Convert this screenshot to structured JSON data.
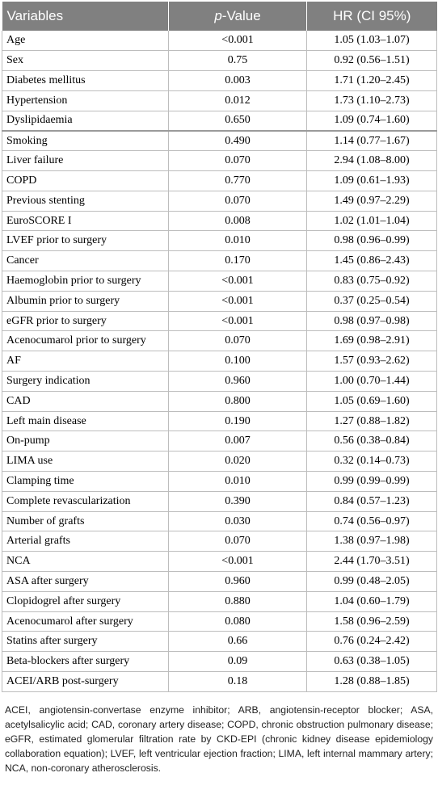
{
  "table": {
    "headers": {
      "variables": "Variables",
      "p_value_prefix": "p",
      "p_value_suffix": "-Value",
      "hr": "HR (CI 95%)"
    },
    "rows": [
      {
        "variable": "Age",
        "p": "<0.001",
        "hr": "1.05 (1.03–1.07)"
      },
      {
        "variable": "Sex",
        "p": "0.75",
        "hr": "0.92 (0.56–1.51)"
      },
      {
        "variable": "Diabetes mellitus",
        "p": "0.003",
        "hr": "1.71 (1.20–2.45)"
      },
      {
        "variable": "Hypertension",
        "p": "0.012",
        "hr": "1.73 (1.10–2.73)"
      },
      {
        "variable": "Dyslipidaemia",
        "p": "0.650",
        "hr": "1.09 (0.74–1.60)"
      },
      {
        "variable": "Smoking",
        "p": "0.490",
        "hr": "1.14 (0.77–1.67)"
      },
      {
        "variable": "Liver failure",
        "p": "0.070",
        "hr": "2.94 (1.08–8.00)"
      },
      {
        "variable": "COPD",
        "p": "0.770",
        "hr": "1.09 (0.61–1.93)"
      },
      {
        "variable": "Previous stenting",
        "p": "0.070",
        "hr": "1.49 (0.97–2.29)"
      },
      {
        "variable": "EuroSCORE I",
        "p": "0.008",
        "hr": "1.02 (1.01–1.04)"
      },
      {
        "variable": "LVEF prior to surgery",
        "p": "0.010",
        "hr": "0.98 (0.96–0.99)"
      },
      {
        "variable": "Cancer",
        "p": "0.170",
        "hr": "1.45 (0.86–2.43)"
      },
      {
        "variable": "Haemoglobin prior to surgery",
        "p": "<0.001",
        "hr": "0.83 (0.75–0.92)"
      },
      {
        "variable": "Albumin prior to surgery",
        "p": "<0.001",
        "hr": "0.37 (0.25–0.54)"
      },
      {
        "variable": "eGFR prior to surgery",
        "p": "<0.001",
        "hr": "0.98 (0.97–0.98)"
      },
      {
        "variable": "Acenocumarol prior to surgery",
        "p": "0.070",
        "hr": "1.69 (0.98–2.91)"
      },
      {
        "variable": "AF",
        "p": "0.100",
        "hr": "1.57 (0.93–2.62)"
      },
      {
        "variable": "Surgery indication",
        "p": "0.960",
        "hr": "1.00 (0.70–1.44)"
      },
      {
        "variable": "CAD",
        "p": "0.800",
        "hr": "1.05 (0.69–1.60)"
      },
      {
        "variable": "Left main disease",
        "p": "0.190",
        "hr": "1.27 (0.88–1.82)"
      },
      {
        "variable": "On-pump",
        "p": "0.007",
        "hr": "0.56 (0.38–0.84)"
      },
      {
        "variable": "LIMA use",
        "p": "0.020",
        "hr": "0.32 (0.14–0.73)"
      },
      {
        "variable": "Clamping time",
        "p": "0.010",
        "hr": "0.99 (0.99–0.99)"
      },
      {
        "variable": "Complete revascularization",
        "p": "0.390",
        "hr": "0.84 (0.57–1.23)"
      },
      {
        "variable": "Number of grafts",
        "p": "0.030",
        "hr": "0.74 (0.56–0.97)"
      },
      {
        "variable": "Arterial grafts",
        "p": "0.070",
        "hr": "1.38 (0.97–1.98)"
      },
      {
        "variable": "NCA",
        "p": "<0.001",
        "hr": "2.44 (1.70–3.51)"
      },
      {
        "variable": "ASA after surgery",
        "p": "0.960",
        "hr": "0.99 (0.48–2.05)"
      },
      {
        "variable": "Clopidogrel after surgery",
        "p": "0.880",
        "hr": "1.04 (0.60–1.79)"
      },
      {
        "variable": "Acenocumarol after surgery",
        "p": "0.080",
        "hr": "1.58 (0.96–2.59)"
      },
      {
        "variable": "Statins after surgery",
        "p": "0.66",
        "hr": "0.76 (0.24–2.42)"
      },
      {
        "variable": "Beta-blockers after surgery",
        "p": "0.09",
        "hr": "0.63 (0.38–1.05)"
      },
      {
        "variable": "ACEI/ARB post-surgery",
        "p": "0.18",
        "hr": "1.28 (0.88–1.85)"
      }
    ]
  },
  "footnote": "ACEI, angiotensin-convertase enzyme inhibitor; ARB, angiotensin-receptor blocker; ASA, acetylsalicylic acid; CAD, coronary artery disease; COPD, chronic obstruction pulmonary disease; eGFR, estimated glomerular filtration rate by CKD-EPI (chronic kidney disease epidemiology collaboration equation); LVEF, left ventricular ejection fraction; LIMA, left internal mammary artery; NCA, non-coronary atherosclerosis."
}
